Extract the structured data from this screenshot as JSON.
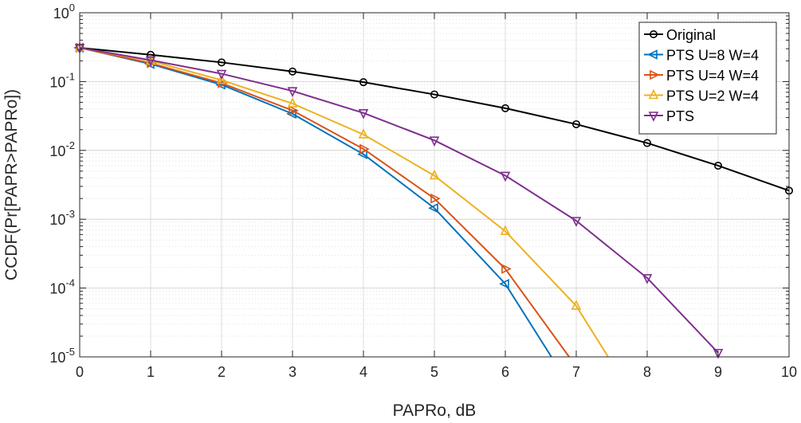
{
  "chart_data": {
    "type": "line",
    "title": "",
    "xlabel": "PAPRo, dB",
    "ylabel": "CCDF(Pr[PAPR>PAPRo])",
    "xlim": [
      0,
      10
    ],
    "ylim": [
      1e-05,
      1
    ],
    "yscale": "log",
    "grid": true,
    "legend_position": "top-right",
    "x_ticks": [
      "0",
      "1",
      "2",
      "3",
      "4",
      "5",
      "6",
      "7",
      "8",
      "9",
      "10"
    ],
    "y_ticks": [
      {
        "value": 1,
        "base": "10",
        "exp": "0"
      },
      {
        "value": 0.1,
        "base": "10",
        "exp": "-1"
      },
      {
        "value": 0.01,
        "base": "10",
        "exp": "-2"
      },
      {
        "value": 0.001,
        "base": "10",
        "exp": "-3"
      },
      {
        "value": 0.0001,
        "base": "10",
        "exp": "-4"
      },
      {
        "value": 1e-05,
        "base": "10",
        "exp": "-5"
      }
    ],
    "series": [
      {
        "name": "Original",
        "color": "#000000",
        "marker": "circle",
        "x": [
          0,
          1,
          2,
          3,
          4,
          5,
          6,
          7,
          8,
          9,
          10
        ],
        "y": [
          0.31,
          0.245,
          0.19,
          0.14,
          0.098,
          0.065,
          0.041,
          0.024,
          0.0128,
          0.006,
          0.0026
        ]
      },
      {
        "name": "PTS U=8 W=4",
        "color": "#0072BD",
        "marker": "triangle-left",
        "x": [
          0,
          1,
          2,
          3,
          4,
          5,
          6,
          6.65
        ],
        "y": [
          0.31,
          0.18,
          0.09,
          0.034,
          0.0088,
          0.00145,
          0.000115,
          1e-05
        ]
      },
      {
        "name": "PTS U=4 W=4",
        "color": "#D95319",
        "marker": "triangle-right",
        "x": [
          0,
          1,
          2,
          3,
          4,
          5,
          6,
          6.9
        ],
        "y": [
          0.31,
          0.185,
          0.095,
          0.038,
          0.0105,
          0.002,
          0.00019,
          1e-05
        ]
      },
      {
        "name": "PTS U=2 W=4",
        "color": "#EDB120",
        "marker": "triangle-up",
        "x": [
          0,
          1,
          2,
          3,
          4,
          5,
          6,
          7,
          7.45
        ],
        "y": [
          0.31,
          0.2,
          0.105,
          0.048,
          0.017,
          0.0043,
          0.00067,
          5.5e-05,
          1e-05
        ]
      },
      {
        "name": "PTS",
        "color": "#7E2F8E",
        "marker": "triangle-down",
        "x": [
          0,
          1,
          2,
          3,
          4,
          5,
          6,
          7,
          8,
          9
        ],
        "y": [
          0.31,
          0.205,
          0.13,
          0.073,
          0.035,
          0.014,
          0.0043,
          0.00095,
          0.00014,
          1.15e-05
        ]
      }
    ]
  }
}
